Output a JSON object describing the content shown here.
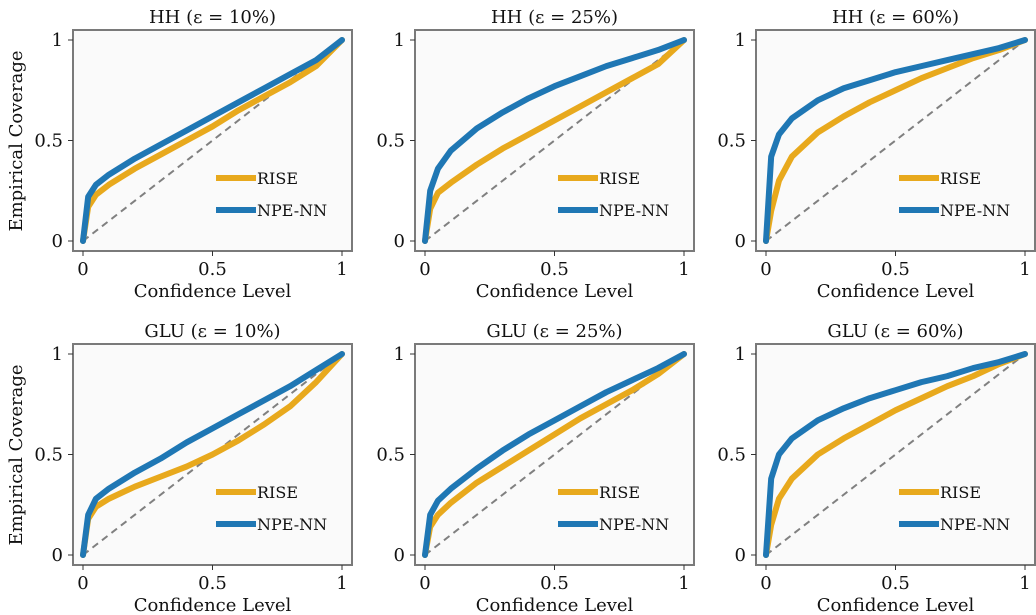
{
  "figure": {
    "ylabel": "Empirical Coverage",
    "xlabel": "Confidence Level",
    "legend": {
      "placement": "lower-right",
      "entries": [
        "RISE",
        "NPE-NN"
      ]
    },
    "colors": {
      "RISE": "#e8a91d",
      "NPE-NN": "#1f77b4",
      "diagonal": "#808080",
      "frame": "#7a7a7a",
      "panel_bg": "#fafafa"
    }
  },
  "chart_data": [
    {
      "type": "line",
      "title": "HH (ε = 10%)",
      "xlabel": "Confidence Level",
      "ylabel": "Empirical Coverage",
      "xlim": [
        0,
        1
      ],
      "ylim": [
        0,
        1
      ],
      "xticks": [
        "0",
        "0.5",
        "1"
      ],
      "yticks": [
        "0",
        "0.5",
        "1"
      ],
      "grid": false,
      "legend_placement": "lower-right",
      "x": [
        0,
        0.02,
        0.05,
        0.1,
        0.2,
        0.3,
        0.4,
        0.5,
        0.6,
        0.7,
        0.8,
        0.9,
        1.0
      ],
      "series": [
        {
          "name": "RISE",
          "values": [
            0,
            0.17,
            0.23,
            0.28,
            0.36,
            0.43,
            0.5,
            0.57,
            0.65,
            0.72,
            0.79,
            0.87,
            1.0
          ]
        },
        {
          "name": "NPE-NN",
          "values": [
            0,
            0.22,
            0.28,
            0.33,
            0.41,
            0.48,
            0.55,
            0.62,
            0.69,
            0.76,
            0.83,
            0.9,
            1.0
          ]
        }
      ]
    },
    {
      "type": "line",
      "title": "HH (ε = 25%)",
      "xlabel": "Confidence Level",
      "ylabel": "Empirical Coverage",
      "xlim": [
        0,
        1
      ],
      "ylim": [
        0,
        1
      ],
      "xticks": [
        "0",
        "0.5",
        "1"
      ],
      "yticks": [
        "0",
        "0.5",
        "1"
      ],
      "grid": false,
      "legend_placement": "lower-right",
      "x": [
        0,
        0.02,
        0.05,
        0.1,
        0.2,
        0.3,
        0.4,
        0.5,
        0.6,
        0.7,
        0.8,
        0.9,
        1.0
      ],
      "series": [
        {
          "name": "RISE",
          "values": [
            0,
            0.16,
            0.24,
            0.29,
            0.38,
            0.46,
            0.53,
            0.6,
            0.67,
            0.74,
            0.81,
            0.88,
            1.0
          ]
        },
        {
          "name": "NPE-NN",
          "values": [
            0,
            0.25,
            0.36,
            0.45,
            0.56,
            0.64,
            0.71,
            0.77,
            0.82,
            0.87,
            0.91,
            0.95,
            1.0
          ]
        }
      ]
    },
    {
      "type": "line",
      "title": "HH (ε = 60%)",
      "xlabel": "Confidence Level",
      "ylabel": "Empirical Coverage",
      "xlim": [
        0,
        1
      ],
      "ylim": [
        0,
        1
      ],
      "xticks": [
        "0",
        "0.5",
        "1"
      ],
      "yticks": [
        "0",
        "0.5",
        "1"
      ],
      "grid": false,
      "legend_placement": "lower-right",
      "x": [
        0,
        0.02,
        0.05,
        0.1,
        0.2,
        0.3,
        0.4,
        0.5,
        0.6,
        0.7,
        0.8,
        0.9,
        1.0
      ],
      "series": [
        {
          "name": "RISE",
          "values": [
            0,
            0.15,
            0.3,
            0.42,
            0.54,
            0.62,
            0.69,
            0.75,
            0.81,
            0.86,
            0.91,
            0.95,
            1.0
          ]
        },
        {
          "name": "NPE-NN",
          "values": [
            0,
            0.42,
            0.53,
            0.61,
            0.7,
            0.76,
            0.8,
            0.84,
            0.87,
            0.9,
            0.93,
            0.96,
            1.0
          ]
        }
      ]
    },
    {
      "type": "line",
      "title": "GLU (ε = 10%)",
      "xlabel": "Confidence Level",
      "ylabel": "Empirical Coverage",
      "xlim": [
        0,
        1
      ],
      "ylim": [
        0,
        1
      ],
      "xticks": [
        "0",
        "0.5",
        "1"
      ],
      "yticks": [
        "0",
        "0.5",
        "1"
      ],
      "grid": false,
      "legend_placement": "lower-right",
      "x": [
        0,
        0.02,
        0.05,
        0.1,
        0.2,
        0.3,
        0.4,
        0.5,
        0.6,
        0.7,
        0.8,
        0.9,
        1.0
      ],
      "series": [
        {
          "name": "RISE",
          "values": [
            0,
            0.18,
            0.24,
            0.28,
            0.34,
            0.39,
            0.44,
            0.5,
            0.57,
            0.65,
            0.74,
            0.86,
            1.0
          ]
        },
        {
          "name": "NPE-NN",
          "values": [
            0,
            0.2,
            0.28,
            0.33,
            0.41,
            0.48,
            0.56,
            0.63,
            0.7,
            0.77,
            0.84,
            0.92,
            1.0
          ]
        }
      ]
    },
    {
      "type": "line",
      "title": "GLU (ε = 25%)",
      "xlabel": "Confidence Level",
      "ylabel": "Empirical Coverage",
      "xlim": [
        0,
        1
      ],
      "ylim": [
        0,
        1
      ],
      "xticks": [
        "0",
        "0.5",
        "1"
      ],
      "yticks": [
        "0",
        "0.5",
        "1"
      ],
      "grid": false,
      "legend_placement": "lower-right",
      "x": [
        0,
        0.02,
        0.05,
        0.1,
        0.2,
        0.3,
        0.4,
        0.5,
        0.6,
        0.7,
        0.8,
        0.9,
        1.0
      ],
      "series": [
        {
          "name": "RISE",
          "values": [
            0,
            0.14,
            0.2,
            0.26,
            0.36,
            0.44,
            0.52,
            0.6,
            0.68,
            0.75,
            0.82,
            0.9,
            1.0
          ]
        },
        {
          "name": "NPE-NN",
          "values": [
            0,
            0.2,
            0.27,
            0.33,
            0.43,
            0.52,
            0.6,
            0.67,
            0.74,
            0.81,
            0.87,
            0.93,
            1.0
          ]
        }
      ]
    },
    {
      "type": "line",
      "title": "GLU (ε = 60%)",
      "xlabel": "Confidence Level",
      "ylabel": "Empirical Coverage",
      "xlim": [
        0,
        1
      ],
      "ylim": [
        0,
        1
      ],
      "xticks": [
        "0",
        "0.5",
        "1"
      ],
      "yticks": [
        "0",
        "0.5",
        "1"
      ],
      "grid": false,
      "legend_placement": "lower-right",
      "x": [
        0,
        0.02,
        0.05,
        0.1,
        0.2,
        0.3,
        0.4,
        0.5,
        0.6,
        0.7,
        0.8,
        0.9,
        1.0
      ],
      "series": [
        {
          "name": "RISE",
          "values": [
            0,
            0.15,
            0.28,
            0.38,
            0.5,
            0.58,
            0.65,
            0.72,
            0.78,
            0.84,
            0.89,
            0.95,
            1.0
          ]
        },
        {
          "name": "NPE-NN",
          "values": [
            0,
            0.38,
            0.5,
            0.58,
            0.67,
            0.73,
            0.78,
            0.82,
            0.86,
            0.89,
            0.93,
            0.96,
            1.0
          ]
        }
      ]
    }
  ]
}
